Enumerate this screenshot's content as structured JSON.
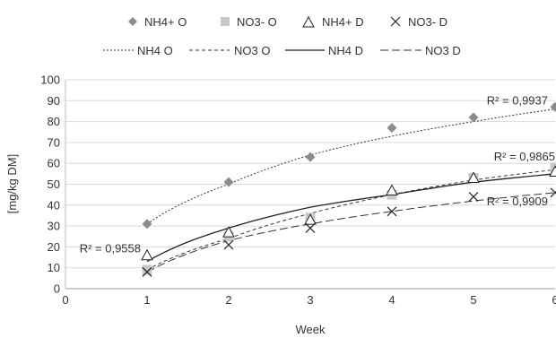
{
  "chart_data": {
    "type": "scatter",
    "xlabel": "Week",
    "ylabel": "[mg/kg DM]",
    "xlim": [
      0,
      6
    ],
    "ylim": [
      0,
      100
    ],
    "x_ticks": [
      "0",
      "1",
      "2",
      "3",
      "4",
      "5",
      "6"
    ],
    "y_ticks": [
      "0",
      "10",
      "20",
      "30",
      "40",
      "50",
      "60",
      "70",
      "80",
      "90",
      "100"
    ],
    "grid": "horizontal",
    "legend_position": "top",
    "series": [
      {
        "name": "NH4+ O",
        "marker": "diamond",
        "color": "#8c8c8c",
        "x": [
          1,
          2,
          3,
          4,
          5,
          6
        ],
        "y": [
          31,
          51,
          63,
          77,
          82,
          87
        ]
      },
      {
        "name": "NO3- O",
        "marker": "square",
        "color": "#c8c8c8",
        "x": [
          1,
          2,
          3,
          4,
          5,
          6
        ],
        "y": [
          9,
          25,
          34,
          45,
          53,
          58
        ]
      },
      {
        "name": "NH4+ D",
        "marker": "triangle",
        "color": "#222222",
        "x": [
          1,
          2,
          3,
          4,
          5,
          6
        ],
        "y": [
          16,
          27,
          33,
          47,
          53,
          56
        ]
      },
      {
        "name": "NO3- D",
        "marker": "x",
        "color": "#222222",
        "x": [
          1,
          2,
          3,
          4,
          5,
          6
        ],
        "y": [
          8,
          21,
          29,
          37,
          44,
          46
        ]
      }
    ],
    "trendlines": [
      {
        "name": "NH4 O",
        "type": "logarithmic",
        "dash": "dotted",
        "points": [
          [
            1,
            31
          ],
          [
            2,
            50
          ],
          [
            3,
            64
          ],
          [
            4,
            73
          ],
          [
            5,
            80
          ],
          [
            6,
            86
          ]
        ],
        "r2_label": "R² = 0,9937"
      },
      {
        "name": "NO3 O",
        "type": "logarithmic",
        "dash": "dashed",
        "points": [
          [
            1,
            9
          ],
          [
            2,
            24
          ],
          [
            3,
            36
          ],
          [
            4,
            45
          ],
          [
            5,
            52
          ],
          [
            6,
            57
          ]
        ],
        "r2_label": "R² = 0,9865"
      },
      {
        "name": "NH4 D",
        "type": "logarithmic",
        "dash": "solid",
        "points": [
          [
            1,
            13
          ],
          [
            2,
            29
          ],
          [
            3,
            39
          ],
          [
            4,
            45
          ],
          [
            5,
            51
          ],
          [
            6,
            55
          ]
        ],
        "r2_label": "R² = 0,9558"
      },
      {
        "name": "NO3 D",
        "type": "logarithmic",
        "dash": "longdash",
        "points": [
          [
            1,
            8
          ],
          [
            2,
            23
          ],
          [
            3,
            31
          ],
          [
            4,
            37
          ],
          [
            5,
            42
          ],
          [
            6,
            46
          ]
        ],
        "r2_label": "R² = 0,9909"
      }
    ]
  }
}
